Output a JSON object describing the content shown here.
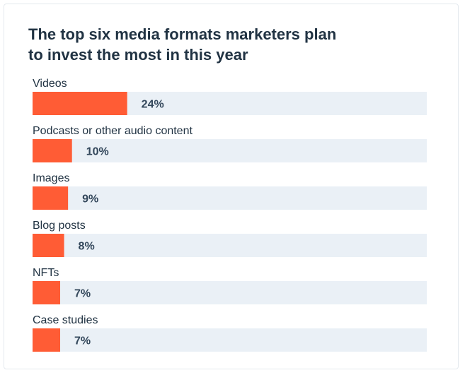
{
  "chart_data": {
    "type": "bar",
    "orientation": "horizontal",
    "title": "The top six media formats marketers plan to invest the most in this year",
    "categories": [
      "Videos",
      "Podcasts or other audio content",
      "Images",
      "Blog posts",
      "NFTs",
      "Case studies"
    ],
    "values": [
      24,
      10,
      9,
      8,
      7,
      7
    ],
    "value_labels": [
      "24%",
      "10%",
      "9%",
      "8%",
      "7%",
      "7%"
    ],
    "unit": "%",
    "xlim": [
      0,
      100
    ],
    "colors": {
      "bar": "#ff5c35",
      "track": "#eaf0f6",
      "label": "#213343",
      "value": "#33475b"
    }
  }
}
